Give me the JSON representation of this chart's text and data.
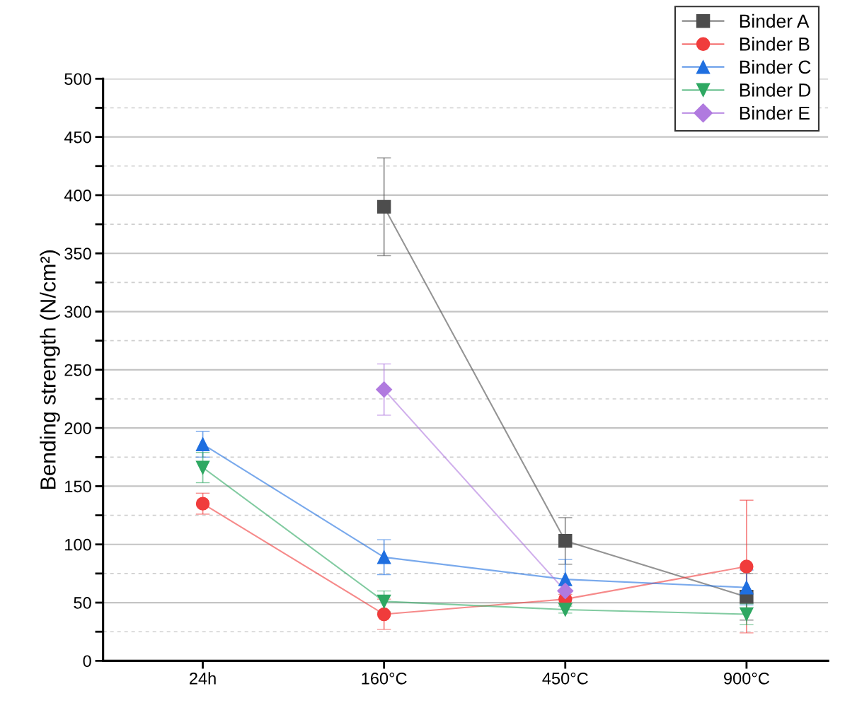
{
  "chart_data": {
    "type": "line",
    "ylabel": "Bending strength (N/cm²)",
    "categories": [
      "24h",
      "160°C",
      "450°C",
      "900°C"
    ],
    "series": [
      {
        "name": "Binder A",
        "color": "#4d4d4d",
        "marker": "square",
        "values": [
          null,
          390,
          103,
          55
        ],
        "errors": [
          null,
          42,
          20,
          20
        ]
      },
      {
        "name": "Binder B",
        "color": "#f03c3c",
        "marker": "circle",
        "values": [
          135,
          40,
          53,
          81
        ],
        "errors": [
          9,
          13,
          4,
          57
        ]
      },
      {
        "name": "Binder C",
        "color": "#1f6fe0",
        "marker": "triangle",
        "values": [
          186,
          89,
          70,
          63
        ],
        "errors": [
          11,
          15,
          17,
          15
        ]
      },
      {
        "name": "Binder D",
        "color": "#2ea862",
        "marker": "triangle_down",
        "values": [
          166,
          51,
          44,
          40
        ],
        "errors": [
          13,
          9,
          3,
          9
        ]
      },
      {
        "name": "Binder E",
        "color": "#b07adf",
        "marker": "diamond",
        "values": [
          null,
          233,
          60,
          null
        ],
        "errors": [
          null,
          22,
          null,
          null
        ]
      }
    ],
    "ylim": [
      0,
      500
    ],
    "yticks": [
      0,
      {
        "value": 25,
        "label": null
      },
      50,
      {
        "value": 75,
        "label": null
      },
      100,
      {
        "value": 125,
        "label": null
      },
      150,
      {
        "value": 175,
        "label": null
      },
      200,
      {
        "value": 225,
        "label": null
      },
      250,
      {
        "value": 275,
        "label": null
      },
      300,
      {
        "value": 325,
        "label": null
      },
      350,
      {
        "value": 375,
        "label": null
      },
      400,
      {
        "value": 425,
        "label": null
      },
      450,
      {
        "value": 475,
        "label": null
      },
      500
    ],
    "grid": "y",
    "legend": "top right",
    "line_style": "solid"
  }
}
